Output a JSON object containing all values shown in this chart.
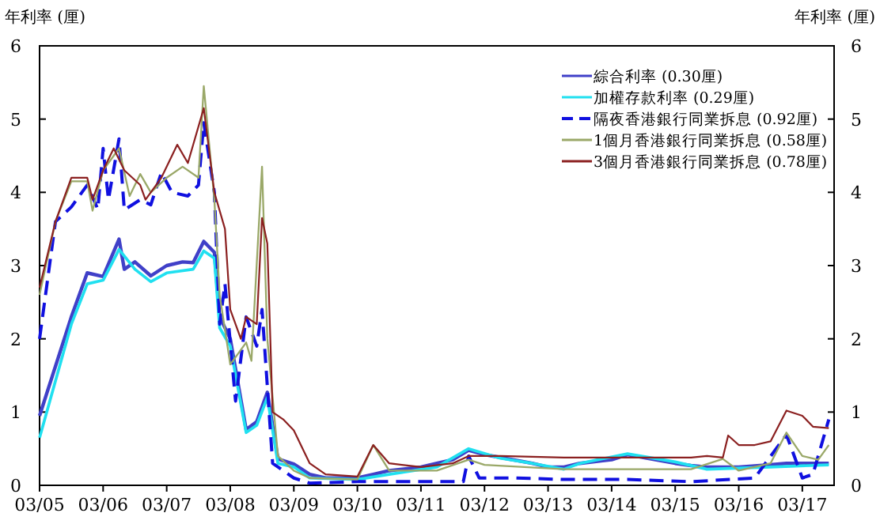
{
  "chart_data": {
    "type": "line",
    "ylabel": "年利率 (厘)",
    "y2label": "年利率 (厘)",
    "xlim": [
      "2005-03",
      "2017-09"
    ],
    "xticks": [
      {
        "value": "2005-03",
        "label": "03/05"
      },
      {
        "value": "2006-03",
        "label": "03/06"
      },
      {
        "value": "2007-03",
        "label": "03/07"
      },
      {
        "value": "2008-03",
        "label": "03/08"
      },
      {
        "value": "2009-03",
        "label": "03/09"
      },
      {
        "value": "2010-03",
        "label": "03/10"
      },
      {
        "value": "2011-03",
        "label": "03/11"
      },
      {
        "value": "2012-03",
        "label": "03/12"
      },
      {
        "value": "2013-03",
        "label": "03/13"
      },
      {
        "value": "2014-03",
        "label": "03/14"
      },
      {
        "value": "2015-03",
        "label": "03/15"
      },
      {
        "value": "2016-03",
        "label": "03/16"
      },
      {
        "value": "2017-03",
        "label": "03/17"
      }
    ],
    "ylim": [
      0,
      6
    ],
    "yticks": [
      0,
      1,
      2,
      3,
      4,
      5,
      6
    ],
    "y2lim": [
      0,
      6
    ],
    "y2ticks": [
      0,
      1,
      2,
      3,
      4,
      5,
      6
    ],
    "grid": false,
    "legend": "top right",
    "series": [
      {
        "name": "綜合利率 (0.30厘)",
        "color": "#4040c8",
        "x": [
          "2005-03",
          "2005-09",
          "2005-12",
          "2006-03",
          "2006-06",
          "2006-07",
          "2006-09",
          "2006-12",
          "2007-03",
          "2007-06",
          "2007-08",
          "2007-10",
          "2007-12",
          "2008-01",
          "2008-03",
          "2008-06",
          "2008-08",
          "2008-10",
          "2008-12",
          "2009-03",
          "2009-06",
          "2009-09",
          "2010-03",
          "2010-06",
          "2010-09",
          "2011-03",
          "2011-06",
          "2011-09",
          "2011-12",
          "2012-03",
          "2012-06",
          "2012-12",
          "2013-03",
          "2013-06",
          "2013-09",
          "2014-03",
          "2014-06",
          "2014-09",
          "2015-03",
          "2015-06",
          "2015-09",
          "2016-03",
          "2016-09",
          "2016-12",
          "2017-03",
          "2017-08"
        ],
        "values": [
          0.95,
          2.3,
          2.9,
          2.85,
          3.36,
          2.95,
          3.05,
          2.86,
          3.0,
          3.05,
          3.04,
          3.33,
          3.18,
          2.3,
          2.0,
          0.76,
          0.87,
          1.27,
          0.36,
          0.29,
          0.15,
          0.1,
          0.1,
          0.15,
          0.2,
          0.25,
          0.3,
          0.35,
          0.48,
          0.42,
          0.38,
          0.3,
          0.25,
          0.25,
          0.3,
          0.35,
          0.42,
          0.38,
          0.3,
          0.27,
          0.25,
          0.25,
          0.28,
          0.3,
          0.3,
          0.3
        ]
      },
      {
        "name": "加權存款利率 (0.29厘)",
        "color": "#20e0f0",
        "x": [
          "2005-03",
          "2005-09",
          "2005-12",
          "2006-03",
          "2006-06",
          "2006-09",
          "2006-12",
          "2007-03",
          "2007-08",
          "2007-10",
          "2007-12",
          "2008-01",
          "2008-03",
          "2008-06",
          "2008-08",
          "2008-10",
          "2008-12",
          "2009-03",
          "2009-06",
          "2010-03",
          "2010-09",
          "2011-06",
          "2011-12",
          "2012-06",
          "2012-12",
          "2013-06",
          "2013-09",
          "2014-06",
          "2015-03",
          "2015-09",
          "2016-09",
          "2017-08"
        ],
        "values": [
          0.65,
          2.2,
          2.75,
          2.8,
          3.22,
          2.95,
          2.78,
          2.9,
          2.95,
          3.2,
          3.1,
          2.15,
          1.9,
          0.72,
          0.82,
          1.2,
          0.3,
          0.25,
          0.1,
          0.08,
          0.15,
          0.25,
          0.5,
          0.37,
          0.3,
          0.22,
          0.3,
          0.43,
          0.32,
          0.22,
          0.25,
          0.28
        ]
      },
      {
        "name": "隔夜香港銀行同業拆息 (0.92厘)",
        "color": "#1010e0",
        "line_style": "dashed",
        "x": [
          "2005-03",
          "2005-06",
          "2005-09",
          "2005-12",
          "2006-02",
          "2006-03",
          "2006-04",
          "2006-06",
          "2006-07",
          "2006-10",
          "2006-12",
          "2007-02",
          "2007-04",
          "2007-07",
          "2007-09",
          "2007-10",
          "2007-12",
          "2008-01",
          "2008-02",
          "2008-04",
          "2008-06",
          "2008-08",
          "2008-09",
          "2008-11",
          "2009-01",
          "2009-03",
          "2009-06",
          "2010-03",
          "2011-06",
          "2011-11",
          "2011-12",
          "2012-02",
          "2012-09",
          "2013-06",
          "2014-06",
          "2015-06",
          "2016-06",
          "2016-12",
          "2017-03",
          "2017-05",
          "2017-07",
          "2017-08"
        ],
        "values": [
          2.0,
          3.6,
          3.8,
          4.1,
          3.77,
          4.6,
          3.9,
          4.73,
          3.76,
          3.9,
          3.83,
          4.27,
          4.0,
          3.95,
          4.1,
          4.95,
          4.0,
          2.2,
          2.75,
          1.15,
          2.3,
          1.9,
          2.4,
          0.3,
          0.2,
          0.1,
          0.03,
          0.05,
          0.05,
          0.05,
          0.4,
          0.1,
          0.1,
          0.08,
          0.08,
          0.05,
          0.1,
          0.69,
          0.1,
          0.15,
          0.65,
          0.9
        ]
      },
      {
        "name": "1個月香港銀行同業拆息 (0.58厘)",
        "color": "#9aa868",
        "x": [
          "2005-03",
          "2005-06",
          "2005-09",
          "2005-12",
          "2006-01",
          "2006-03",
          "2006-06",
          "2006-08",
          "2006-10",
          "2006-12",
          "2007-03",
          "2007-06",
          "2007-09",
          "2007-10",
          "2007-12",
          "2008-01",
          "2008-03",
          "2008-06",
          "2008-07",
          "2008-09",
          "2008-10",
          "2008-12",
          "2009-03",
          "2009-06",
          "2010-03",
          "2010-06",
          "2010-09",
          "2011-06",
          "2011-12",
          "2012-03",
          "2013-06",
          "2014-06",
          "2015-06",
          "2015-12",
          "2016-03",
          "2016-09",
          "2016-12",
          "2017-03",
          "2017-06",
          "2017-07",
          "2017-08"
        ],
        "values": [
          2.6,
          3.6,
          4.15,
          4.15,
          3.75,
          4.3,
          4.6,
          3.95,
          4.25,
          4.0,
          4.2,
          4.35,
          4.2,
          5.45,
          3.9,
          2.6,
          1.65,
          1.95,
          1.7,
          4.35,
          2.0,
          0.4,
          0.2,
          0.1,
          0.08,
          0.55,
          0.2,
          0.2,
          0.35,
          0.28,
          0.22,
          0.22,
          0.22,
          0.36,
          0.2,
          0.3,
          0.72,
          0.4,
          0.35,
          0.45,
          0.55
        ]
      },
      {
        "name": "3個月香港銀行同業拆息 (0.78厘)",
        "color": "#8b2020",
        "x": [
          "2005-03",
          "2005-06",
          "2005-09",
          "2005-12",
          "2006-01",
          "2006-03",
          "2006-05",
          "2006-07",
          "2006-10",
          "2006-11",
          "2007-02",
          "2007-05",
          "2007-07",
          "2007-10",
          "2007-12",
          "2008-02",
          "2008-03",
          "2008-05",
          "2008-06",
          "2008-08",
          "2008-09",
          "2008-10",
          "2008-11",
          "2009-01",
          "2009-03",
          "2009-06",
          "2009-09",
          "2010-03",
          "2010-06",
          "2010-09",
          "2011-03",
          "2011-09",
          "2011-12",
          "2012-06",
          "2013-06",
          "2014-06",
          "2015-06",
          "2015-09",
          "2015-12",
          "2016-01",
          "2016-03",
          "2016-06",
          "2016-09",
          "2016-12",
          "2017-03",
          "2017-05",
          "2017-08"
        ],
        "values": [
          2.7,
          3.6,
          4.2,
          4.2,
          3.9,
          4.3,
          4.6,
          4.3,
          4.1,
          3.9,
          4.2,
          4.65,
          4.4,
          5.15,
          4.0,
          3.5,
          2.4,
          2.0,
          2.3,
          2.2,
          3.65,
          3.3,
          1.0,
          0.9,
          0.75,
          0.3,
          0.15,
          0.12,
          0.55,
          0.3,
          0.25,
          0.3,
          0.4,
          0.4,
          0.38,
          0.38,
          0.38,
          0.4,
          0.38,
          0.68,
          0.55,
          0.55,
          0.6,
          1.02,
          0.95,
          0.8,
          0.78
        ]
      }
    ]
  }
}
